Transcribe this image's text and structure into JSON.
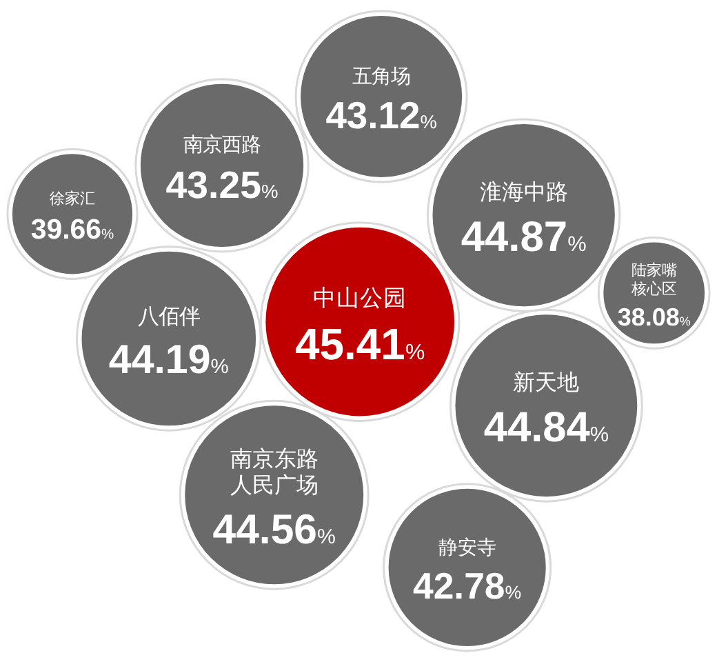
{
  "chart_data": {
    "type": "other",
    "categories": [
      "五角场",
      "静安寺",
      "徐家汇",
      "陆家嘴核心区",
      "八佰伴",
      "南京东路人民广场",
      "新天地",
      "南京西路",
      "中山公园",
      "淮海中路"
    ],
    "values": [
      43.12,
      42.78,
      39.66,
      38.08,
      44.19,
      44.56,
      44.84,
      43.25,
      45.41,
      44.87
    ],
    "value_labels": [
      "43.12%",
      "42.78%",
      "39.66%",
      "38.08%",
      "44.19%",
      "44.56%",
      "44.84%",
      "43.25%",
      "45.41%",
      "44.87%"
    ],
    "colors": [
      "#6b6a6a",
      "#6b6a6a",
      "#6b6a6a",
      "#6b6a6a",
      "#6b6a6a",
      "#6b6a6a",
      "#6b6a6a",
      "#6b6a6a",
      "#c00000",
      "#6b6a6a"
    ]
  }
}
